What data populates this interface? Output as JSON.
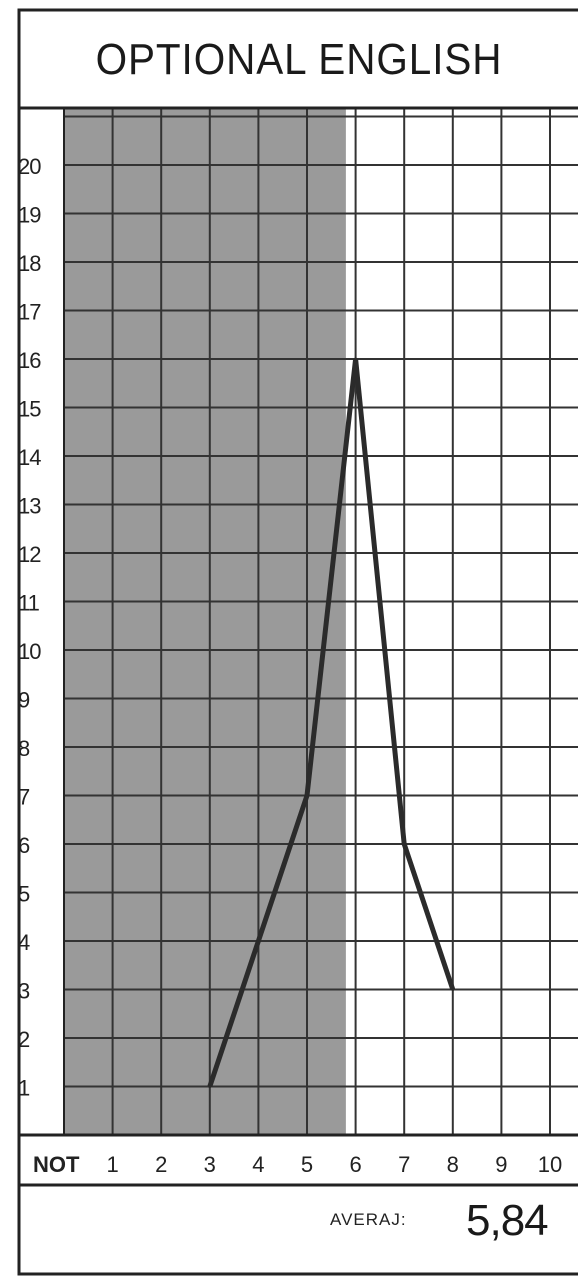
{
  "title": "OPTIONAL ENGLISH",
  "average_label": "AVERAJ:",
  "average_value": "5,84",
  "chart_data": {
    "type": "line",
    "title": "OPTIONAL ENGLISH",
    "xlabel": "NOT",
    "ylabel": "",
    "categories": [
      "1",
      "2",
      "3",
      "4",
      "5",
      "6",
      "7",
      "8",
      "9",
      "10"
    ],
    "x_tick_labels": [
      "1",
      "2",
      "3",
      "4",
      "5",
      "6",
      "7",
      "8",
      "9",
      "10"
    ],
    "y_tick_labels": [
      "1",
      "2",
      "3",
      "4",
      "5",
      "6",
      "7",
      "8",
      "9",
      "10",
      "11",
      "12",
      "13",
      "14",
      "15",
      "16",
      "17",
      "18",
      "19",
      "20"
    ],
    "xlim": [
      0,
      11
    ],
    "ylim": [
      0,
      21
    ],
    "grid": true,
    "shaded_region": {
      "x_from": 0,
      "x_to": 5.8,
      "color": "#9a9a9a"
    },
    "series": [
      {
        "points": [
          [
            3,
            1
          ],
          [
            4,
            4
          ],
          [
            5,
            7
          ],
          [
            6,
            16
          ],
          [
            7,
            6
          ],
          [
            8,
            3
          ]
        ],
        "color": "#2b2b2b"
      }
    ]
  }
}
